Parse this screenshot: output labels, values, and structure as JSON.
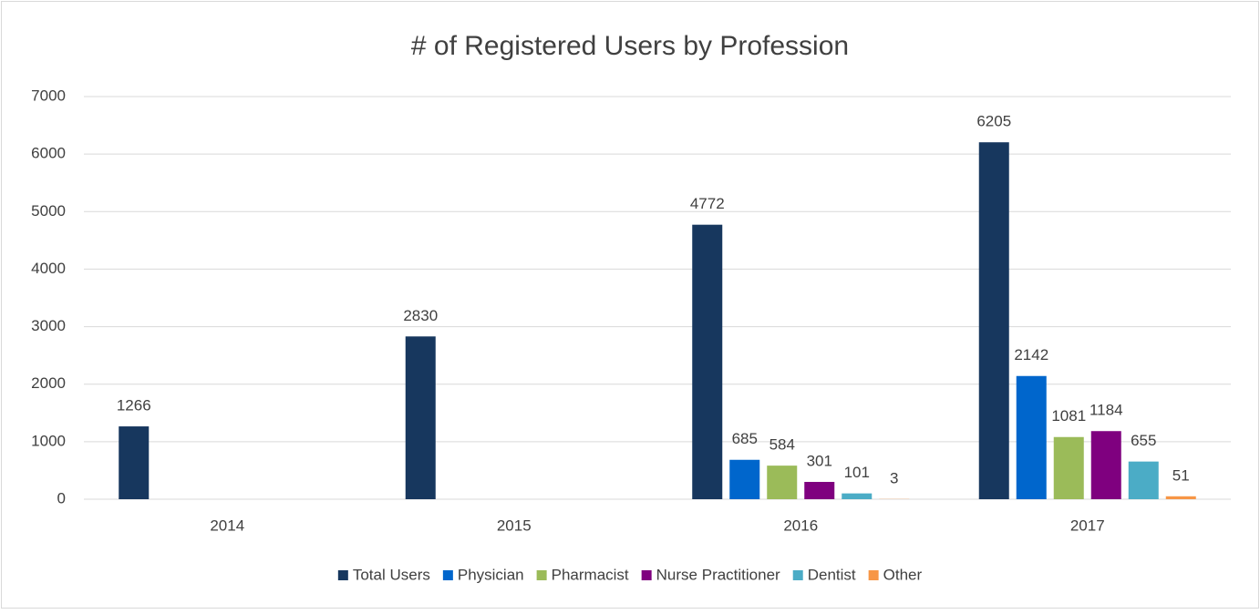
{
  "chart_data": {
    "type": "bar",
    "title": "# of Registered Users by Profession",
    "categories": [
      "2014",
      "2015",
      "2016",
      "2017"
    ],
    "series": [
      {
        "name": "Total Users",
        "color": "#17375e",
        "values": [
          1266,
          2830,
          4772,
          6205
        ]
      },
      {
        "name": "Physician",
        "color": "#0066cc",
        "values": [
          null,
          null,
          685,
          2142
        ]
      },
      {
        "name": "Pharmacist",
        "color": "#9bbb59",
        "values": [
          null,
          null,
          584,
          1081
        ]
      },
      {
        "name": "Nurse Practitioner",
        "color": "#7f007f",
        "values": [
          null,
          null,
          301,
          1184
        ]
      },
      {
        "name": "Dentist",
        "color": "#4bacc6",
        "values": [
          null,
          null,
          101,
          655
        ]
      },
      {
        "name": "Other",
        "color": "#f79646",
        "values": [
          null,
          null,
          3,
          51
        ]
      }
    ],
    "ylim": [
      0,
      7000
    ],
    "yticks": [
      0,
      1000,
      2000,
      3000,
      4000,
      5000,
      6000,
      7000
    ],
    "grid": true,
    "legend": "bottom"
  }
}
